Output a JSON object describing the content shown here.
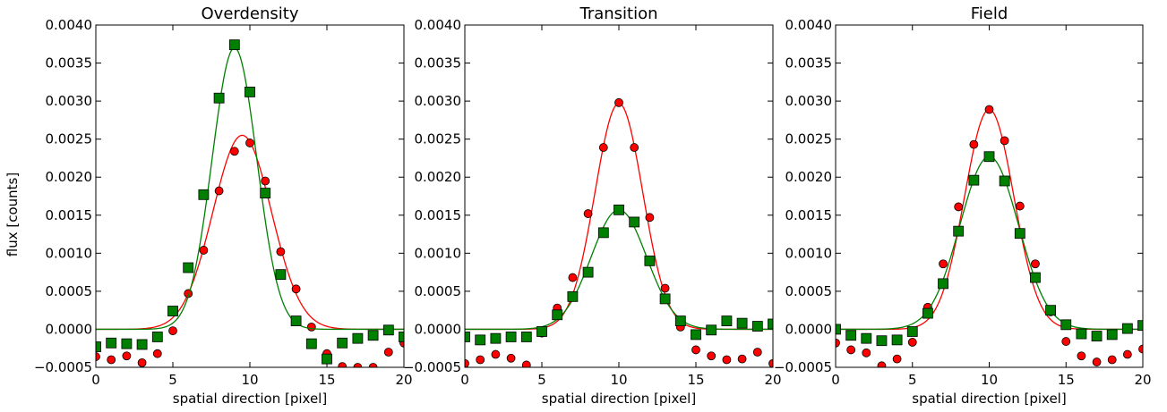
{
  "figure": {
    "ylabel": "flux [counts]",
    "colors": {
      "red_series": "#ff0000",
      "green_series": "#008000",
      "marker_edge": "#000000"
    }
  },
  "chart_data": [
    {
      "type": "scatter",
      "title": "Overdensity",
      "xlabel": "spatial direction [pixel]",
      "ylabel": "flux [counts]",
      "xlim": [
        0,
        20
      ],
      "ylim": [
        -0.0005,
        0.004
      ],
      "x_ticks": [
        "0",
        "5",
        "10",
        "15",
        "20"
      ],
      "y_ticks": [
        "−0.0005",
        "0.0000",
        "0.0005",
        "0.0010",
        "0.0015",
        "0.0020",
        "0.0025",
        "0.0030",
        "0.0035",
        "0.0040"
      ],
      "grid": false,
      "series": [
        {
          "marker": "circle",
          "color": "#ff0000",
          "x": [
            0,
            1,
            2,
            3,
            4,
            5,
            6,
            7,
            8,
            9,
            10,
            11,
            12,
            13,
            14,
            15,
            16,
            17,
            18,
            19,
            20
          ],
          "y": [
            -0.00036,
            -0.0004,
            -0.00035,
            -0.00044,
            -0.00032,
            -2e-05,
            0.00047,
            0.00104,
            0.00182,
            0.00234,
            0.00245,
            0.00195,
            0.00102,
            0.00053,
            3e-05,
            -0.00032,
            -0.00049,
            -0.0005,
            -0.0005,
            -0.0003,
            -0.00018
          ],
          "fit": {
            "amplitude": 0.00255,
            "center": 9.5,
            "sigma": 1.9,
            "offset": 0.0
          }
        },
        {
          "marker": "square",
          "color": "#008000",
          "x": [
            0,
            1,
            2,
            3,
            4,
            5,
            6,
            7,
            8,
            9,
            10,
            11,
            12,
            13,
            14,
            15,
            16,
            17,
            18,
            19,
            20
          ],
          "y": [
            -0.00023,
            -0.00018,
            -0.00019,
            -0.0002,
            -0.0001,
            0.00024,
            0.00081,
            0.00177,
            0.00304,
            0.00374,
            0.00312,
            0.00179,
            0.00072,
            0.00011,
            -0.00019,
            -0.00039,
            -0.00018,
            -0.00012,
            -8e-05,
            -1e-05,
            -0.0001
          ],
          "fit": {
            "amplitude": 0.0037,
            "center": 9.0,
            "sigma": 1.45,
            "offset": 0.0
          }
        }
      ]
    },
    {
      "type": "scatter",
      "title": "Transition",
      "xlabel": "spatial direction [pixel]",
      "ylabel": "",
      "xlim": [
        0,
        20
      ],
      "ylim": [
        -0.0005,
        0.004
      ],
      "x_ticks": [
        "0",
        "5",
        "10",
        "15",
        "20"
      ],
      "y_ticks": [
        "−0.0005",
        "0.0000",
        "0.0005",
        "0.0010",
        "0.0015",
        "0.0020",
        "0.0025",
        "0.0030",
        "0.0035",
        "0.0040"
      ],
      "grid": false,
      "series": [
        {
          "marker": "circle",
          "color": "#ff0000",
          "x": [
            0,
            1,
            2,
            3,
            4,
            5,
            6,
            7,
            8,
            9,
            10,
            11,
            12,
            13,
            14,
            15,
            16,
            17,
            18,
            19,
            20
          ],
          "y": [
            -0.00045,
            -0.0004,
            -0.00033,
            -0.00038,
            -0.00047,
            -5e-05,
            0.00028,
            0.00068,
            0.00152,
            0.00239,
            0.00298,
            0.00239,
            0.00147,
            0.00054,
            3e-05,
            -0.00027,
            -0.00035,
            -0.0004,
            -0.00039,
            -0.0003,
            -0.00045
          ],
          "fit": {
            "amplitude": 0.00297,
            "center": 10.0,
            "sigma": 1.55,
            "offset": 0.0
          }
        },
        {
          "marker": "square",
          "color": "#008000",
          "x": [
            0,
            1,
            2,
            3,
            4,
            5,
            6,
            7,
            8,
            9,
            10,
            11,
            12,
            13,
            14,
            15,
            16,
            17,
            18,
            19,
            20
          ],
          "y": [
            -0.0001,
            -0.00014,
            -0.00012,
            -0.0001,
            -0.0001,
            -3e-05,
            0.00019,
            0.00043,
            0.00075,
            0.00127,
            0.00157,
            0.00141,
            0.0009,
            0.0004,
            0.00011,
            -7e-05,
            -1e-05,
            0.00011,
            8e-05,
            4e-05,
            7e-05
          ],
          "fit": {
            "amplitude": 0.00157,
            "center": 10.0,
            "sigma": 1.8,
            "offset": 0.0
          }
        }
      ]
    },
    {
      "type": "scatter",
      "title": "Field",
      "xlabel": "spatial direction [pixel]",
      "ylabel": "",
      "xlim": [
        0,
        20
      ],
      "ylim": [
        -0.0005,
        0.004
      ],
      "x_ticks": [
        "0",
        "5",
        "10",
        "15",
        "20"
      ],
      "y_ticks": [
        "−0.0005",
        "0.0000",
        "0.0005",
        "0.0010",
        "0.0015",
        "0.0020",
        "0.0025",
        "0.0030",
        "0.0035",
        "0.0040"
      ],
      "grid": false,
      "series": [
        {
          "marker": "circle",
          "color": "#ff0000",
          "x": [
            0,
            1,
            2,
            3,
            4,
            5,
            6,
            7,
            8,
            9,
            10,
            11,
            12,
            13,
            14,
            15,
            16,
            17,
            18,
            19,
            20
          ],
          "y": [
            -0.00018,
            -0.00027,
            -0.00031,
            -0.00048,
            -0.00039,
            -0.00017,
            0.00029,
            0.00086,
            0.00161,
            0.00243,
            0.00289,
            0.00248,
            0.00162,
            0.00086,
            0.00023,
            -0.00016,
            -0.00035,
            -0.00043,
            -0.0004,
            -0.00033,
            -0.00026
          ],
          "fit": {
            "amplitude": 0.00289,
            "center": 10.0,
            "sigma": 1.6,
            "offset": 0.0
          }
        },
        {
          "marker": "square",
          "color": "#008000",
          "x": [
            0,
            1,
            2,
            3,
            4,
            5,
            6,
            7,
            8,
            9,
            10,
            11,
            12,
            13,
            14,
            15,
            16,
            17,
            18,
            19,
            20
          ],
          "y": [
            0.0,
            -8e-05,
            -0.00012,
            -0.00015,
            -0.00014,
            -3e-05,
            0.00021,
            0.0006,
            0.00129,
            0.00196,
            0.00227,
            0.00195,
            0.00126,
            0.00068,
            0.00025,
            6e-05,
            -6e-05,
            -9e-05,
            -7e-05,
            1e-05,
            5e-05
          ],
          "fit": {
            "amplitude": 0.00227,
            "center": 10.0,
            "sigma": 1.9,
            "offset": 0.0
          }
        }
      ]
    }
  ]
}
